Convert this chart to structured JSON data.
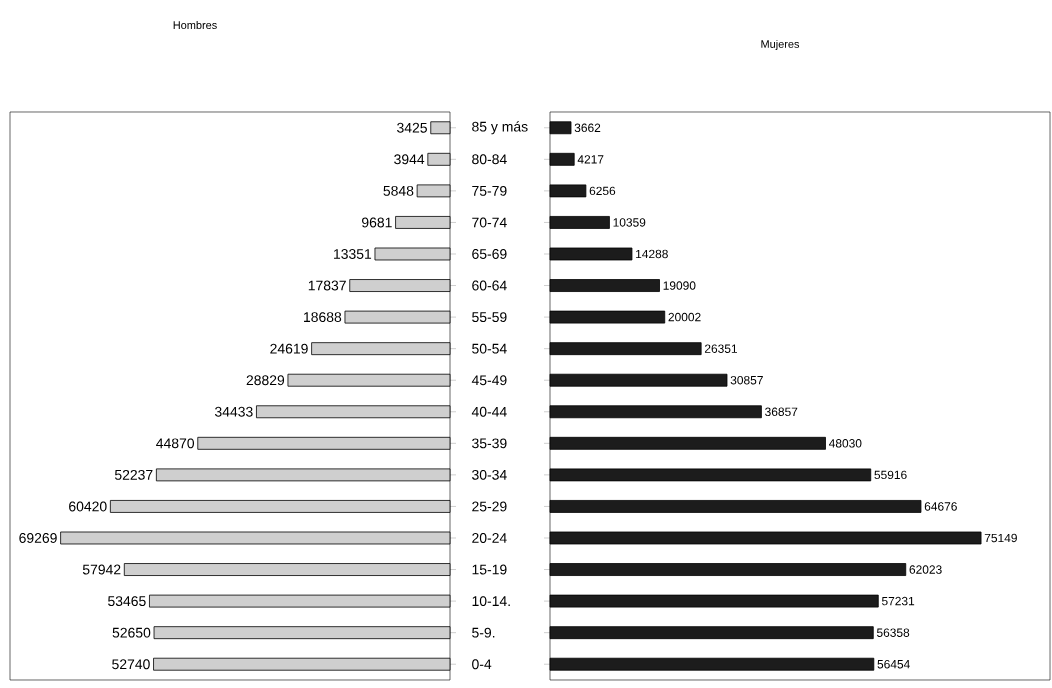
{
  "chart_data": [
    {
      "type": "bar",
      "orientation": "horizontal",
      "title": "Hombres",
      "color": "#cfcfcf",
      "data_labels": true,
      "tick_labels": "y",
      "categories": [
        "85 y más",
        "80-84",
        "75-79",
        "70-74",
        "65-69",
        "60-64",
        "55-59",
        "50-54",
        "45-49",
        "40-44",
        "35-39",
        "30-34",
        "25-29",
        "20-24",
        "15-19",
        "10-14.",
        "5-9.",
        "0-4"
      ],
      "values": [
        3425,
        3944,
        5848,
        9681,
        13351,
        17837,
        18688,
        24619,
        28829,
        34433,
        44870,
        52237,
        60420,
        69269,
        57942,
        53465,
        52650,
        52740
      ]
    },
    {
      "type": "bar",
      "orientation": "horizontal",
      "title": "Mujeres",
      "color": "#1c1c1c",
      "data_labels": true,
      "tick_labels": false,
      "categories": [
        null,
        null,
        null,
        null,
        null,
        null,
        null,
        null,
        null,
        null,
        null,
        null,
        null,
        null,
        null,
        null,
        null,
        null
      ],
      "values": [
        3662,
        4217,
        6256,
        10359,
        14288,
        19090,
        20002,
        26351,
        30857,
        36857,
        48030,
        55916,
        64676,
        75149,
        62023,
        57231,
        56358,
        56454
      ]
    }
  ]
}
